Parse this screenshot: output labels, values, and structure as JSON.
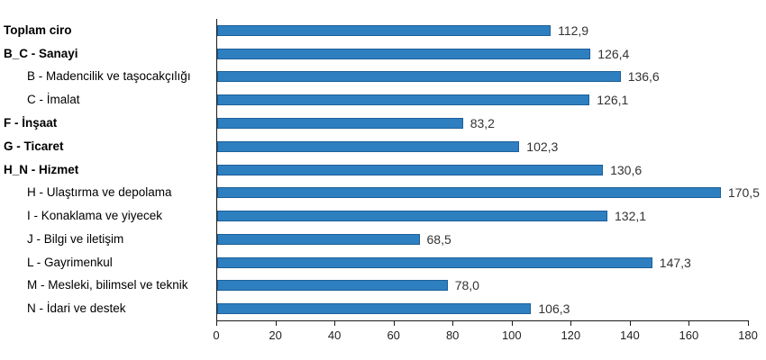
{
  "chart_data": {
    "type": "bar",
    "orientation": "horizontal",
    "title": "",
    "xlabel": "",
    "ylabel": "",
    "xlim": [
      0,
      180
    ],
    "x_ticks": [
      0,
      20,
      40,
      60,
      80,
      100,
      120,
      140,
      160,
      180
    ],
    "grid": false,
    "legend": false,
    "colors": {
      "bar_fill": "#2e7fc0",
      "bar_border": "#1c5f98",
      "axis": "#1a1a1a",
      "category_text": "#000000",
      "value_text": "#333333"
    },
    "bars": [
      {
        "label": "Toplam ciro",
        "value": 112.9,
        "display": "112,9",
        "emphasis": "bold",
        "indent": 0
      },
      {
        "label": "B_C - Sanayi",
        "value": 126.4,
        "display": "126,4",
        "emphasis": "bold",
        "indent": 0
      },
      {
        "label": "B - Madencilik ve taşocakçılığı",
        "value": 136.6,
        "display": "136,6",
        "emphasis": "normal",
        "indent": 1
      },
      {
        "label": "C - İmalat",
        "value": 126.1,
        "display": "126,1",
        "emphasis": "normal",
        "indent": 1
      },
      {
        "label": "F - İnşaat",
        "value": 83.2,
        "display": "83,2",
        "emphasis": "bold",
        "indent": 0
      },
      {
        "label": "G - Ticaret",
        "value": 102.3,
        "display": "102,3",
        "emphasis": "bold",
        "indent": 0
      },
      {
        "label": "H_N - Hizmet",
        "value": 130.6,
        "display": "130,6",
        "emphasis": "bold",
        "indent": 0
      },
      {
        "label": "H - Ulaştırma ve depolama",
        "value": 170.5,
        "display": "170,5",
        "emphasis": "normal",
        "indent": 1
      },
      {
        "label": "I - Konaklama ve yiyecek",
        "value": 132.1,
        "display": "132,1",
        "emphasis": "normal",
        "indent": 1
      },
      {
        "label": "J - Bilgi ve iletişim",
        "value": 68.5,
        "display": "68,5",
        "emphasis": "normal",
        "indent": 1
      },
      {
        "label": "L - Gayrimenkul",
        "value": 147.3,
        "display": "147,3",
        "emphasis": "normal",
        "indent": 1
      },
      {
        "label": "M - Mesleki, bilimsel ve teknik",
        "value": 78.0,
        "display": "78,0",
        "emphasis": "normal",
        "indent": 1
      },
      {
        "label": "N - İdari ve destek",
        "value": 106.3,
        "display": "106,3",
        "emphasis": "normal",
        "indent": 1
      }
    ]
  }
}
